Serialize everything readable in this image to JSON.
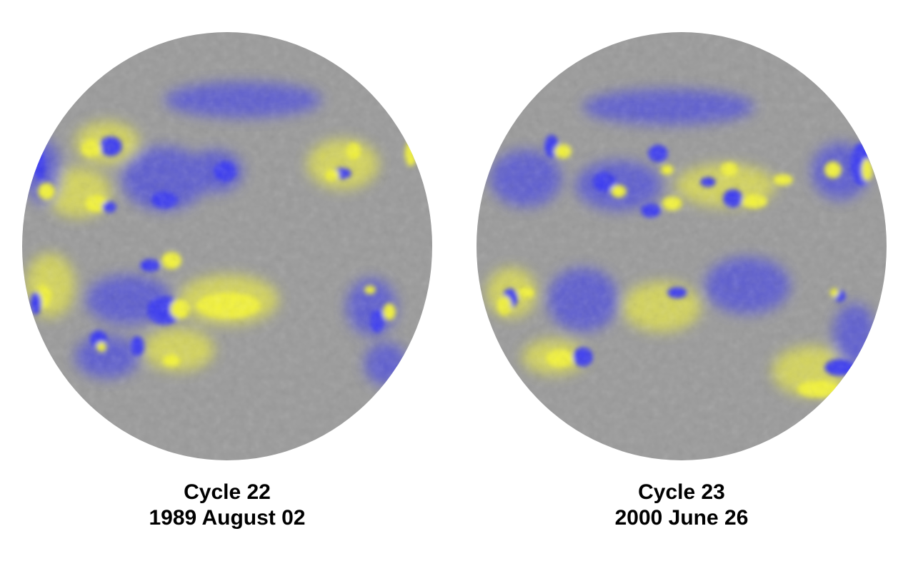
{
  "colors": {
    "background": "#ffffff",
    "disk": "#9a9a9a",
    "negative_polarity": "#3a3af0",
    "positive_polarity": "#f2f23a",
    "caption_text": "#000000"
  },
  "panels": [
    {
      "cycle_label": "Cycle 22",
      "date_label": "1989 August 02"
    },
    {
      "cycle_label": "Cycle 23",
      "date_label": "2000 June 26"
    }
  ]
}
